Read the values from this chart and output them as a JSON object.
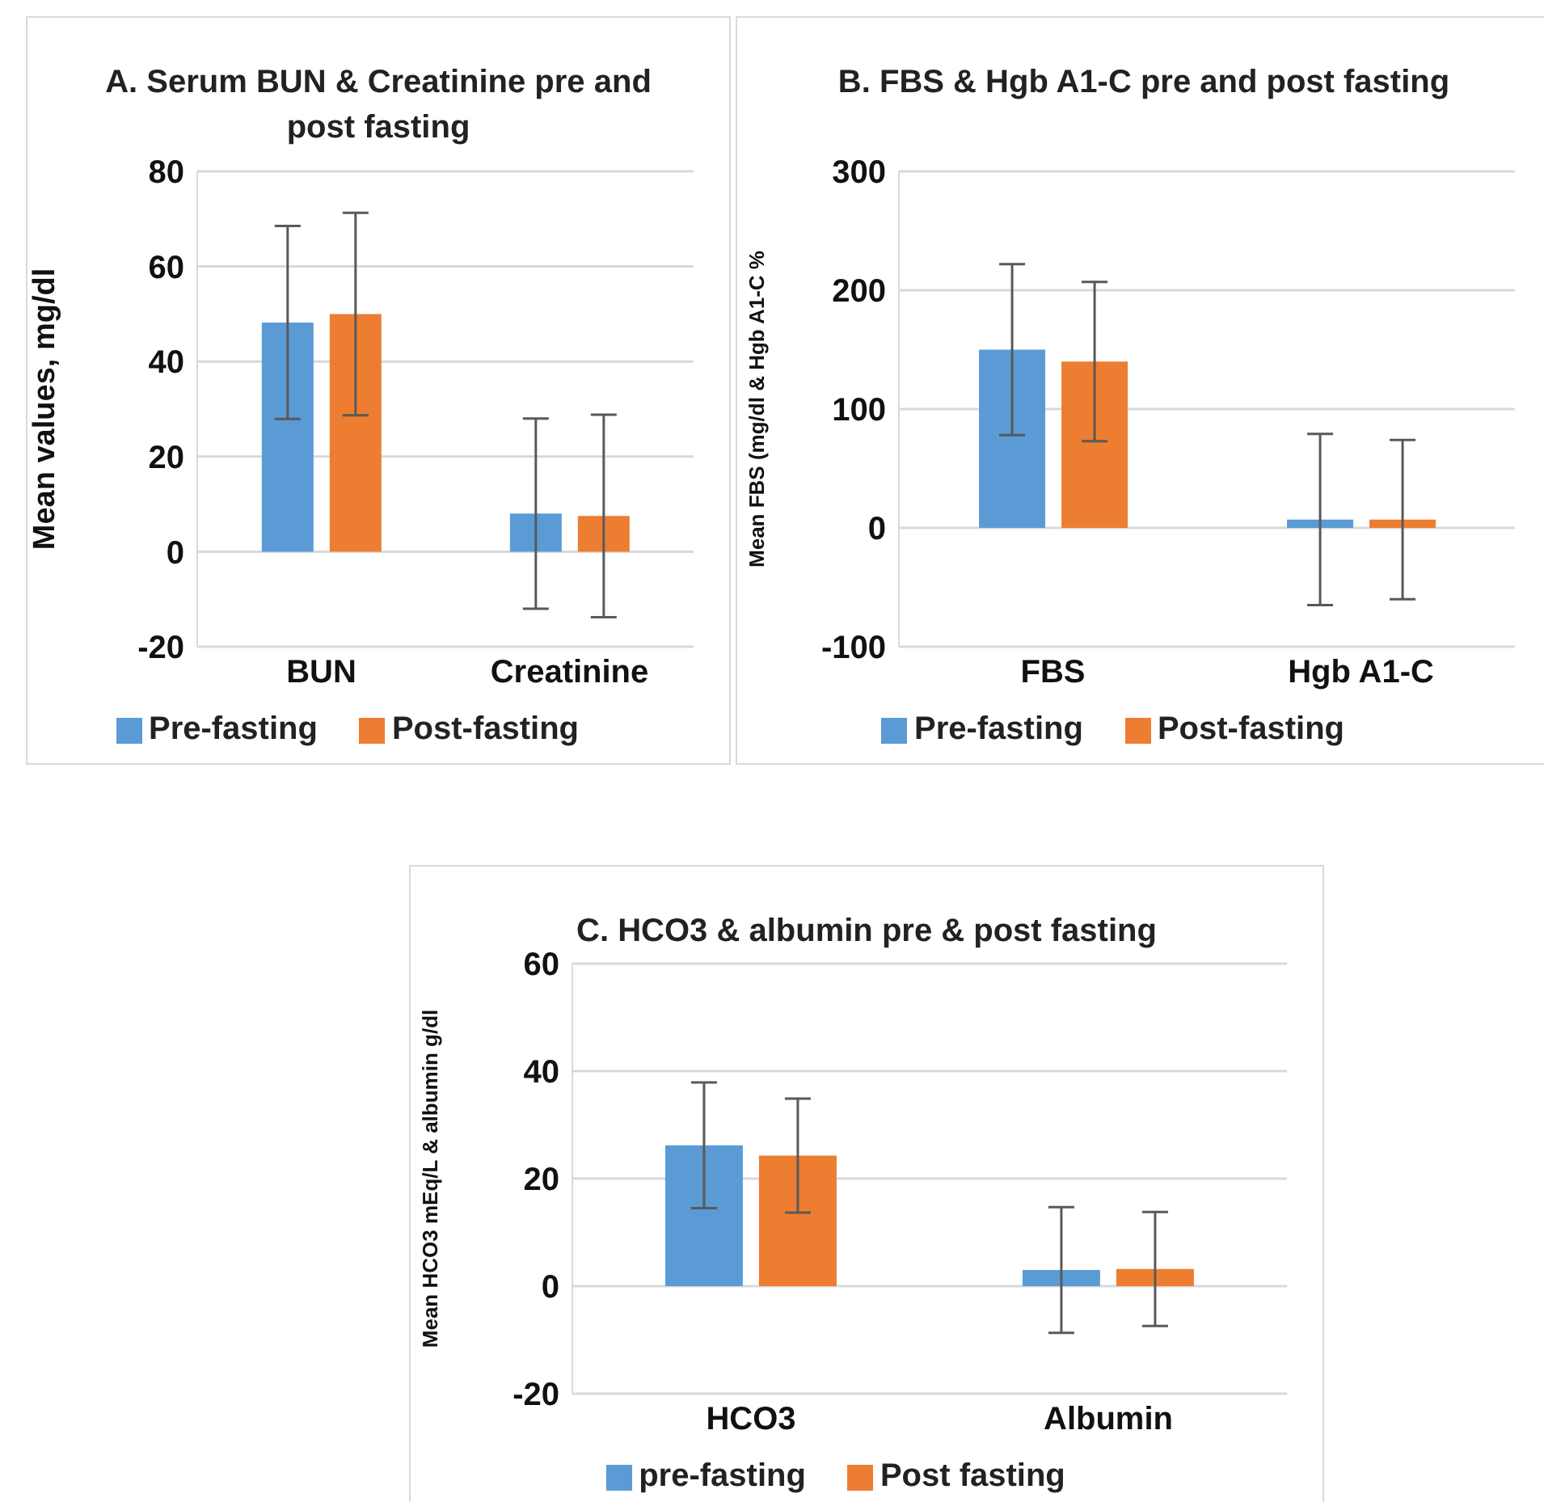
{
  "chart_data": [
    {
      "type": "bar",
      "title": "A. Serum BUN & Creatinine pre and post fasting",
      "ylabel": "Mean values, mg/dl",
      "categories": [
        "BUN",
        "Creatinine"
      ],
      "series": [
        {
          "name": "Pre-fasting",
          "color": "#5b9bd5",
          "values": [
            48.2,
            8
          ],
          "errors": [
            20.3,
            20
          ]
        },
        {
          "name": "Post-fasting",
          "color": "#ed7d31",
          "values": [
            50,
            7.5
          ],
          "errors": [
            21.3,
            21.3
          ]
        }
      ],
      "ylim": [
        -20,
        80
      ],
      "yticks": [
        -20,
        0,
        20,
        40,
        60,
        80
      ],
      "grid": "y",
      "legend": "bottom"
    },
    {
      "type": "bar",
      "title": "B. FBS & Hgb A1-C pre and post fasting",
      "ylabel": "Mean FBS (mg/dl & Hgb A1-C %",
      "categories": [
        "FBS",
        "Hgb A1-C"
      ],
      "series": [
        {
          "name": "Pre-fasting",
          "color": "#5b9bd5",
          "values": [
            150,
            7
          ],
          "errors": [
            72,
            72
          ]
        },
        {
          "name": "Post-fasting",
          "color": "#ed7d31",
          "values": [
            140,
            7
          ],
          "errors": [
            67,
            67
          ]
        }
      ],
      "ylim": [
        -100,
        300
      ],
      "yticks": [
        -100,
        0,
        100,
        200,
        300
      ],
      "grid": "y",
      "legend": "bottom"
    },
    {
      "type": "bar",
      "title": "C. HCO3 & albumin pre & post fasting",
      "ylabel": "Mean HCO3 mEq/L & albumin g/dl",
      "categories": [
        "HCO3",
        "Albumin"
      ],
      "series": [
        {
          "name": "pre-fasting",
          "color": "#5b9bd5",
          "values": [
            26.2,
            3
          ],
          "errors": [
            11.7,
            11.7
          ]
        },
        {
          "name": "Post fasting",
          "color": "#ed7d31",
          "values": [
            24.3,
            3.2
          ],
          "errors": [
            10.6,
            10.6
          ]
        }
      ],
      "ylim": [
        -20,
        60
      ],
      "yticks": [
        -20,
        0,
        20,
        40,
        60
      ],
      "grid": "y",
      "legend": "bottom"
    }
  ]
}
